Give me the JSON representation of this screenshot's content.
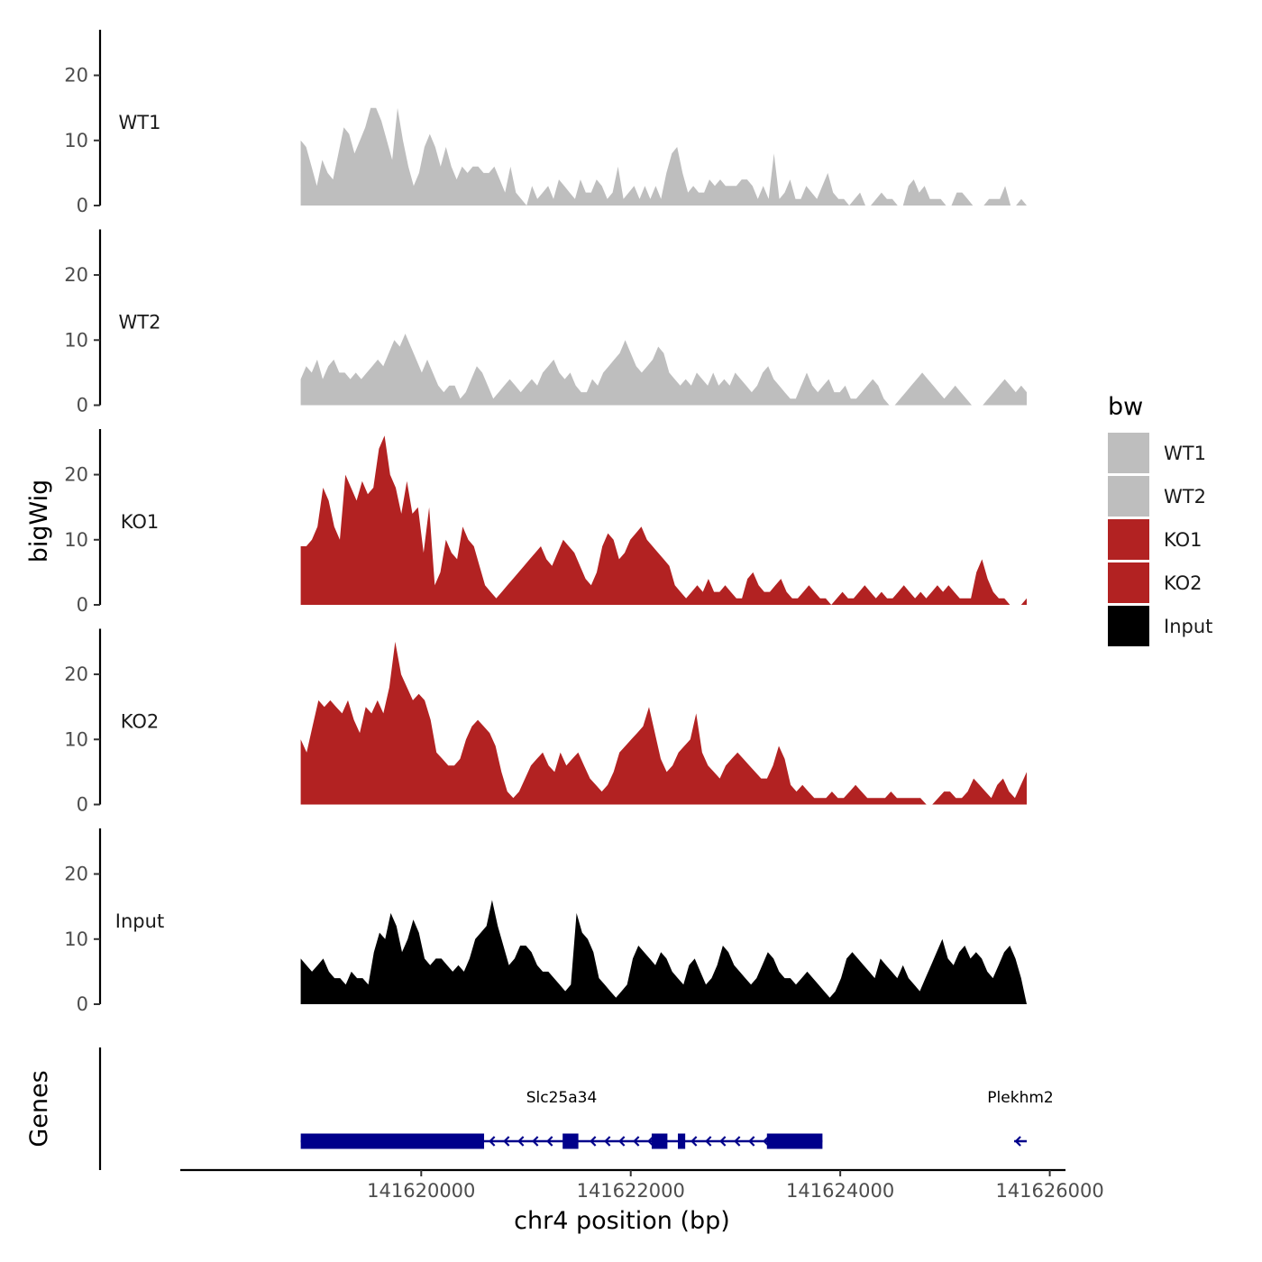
{
  "chart_data": {
    "type": "area",
    "title": "",
    "ylabel": "bigWig",
    "xlabel": "chr4 position (bp)",
    "ylim": [
      0,
      27
    ],
    "yticks": [
      0,
      10,
      20
    ],
    "xlim": [
      141617700,
      141626150
    ],
    "xticks": [
      141620000,
      141622000,
      141624000,
      141626000
    ],
    "x_start": 141618850,
    "x_end": 141625780,
    "grid": false,
    "legend": {
      "title": "bw",
      "position": "right",
      "entries": [
        {
          "name": "WT1",
          "color": "#bebebe"
        },
        {
          "name": "WT2",
          "color": "#bebebe"
        },
        {
          "name": "KO1",
          "color": "#b22222"
        },
        {
          "name": "KO2",
          "color": "#b22222"
        },
        {
          "name": "Input",
          "color": "#000000"
        }
      ]
    },
    "series": [
      {
        "name": "WT1",
        "color": "#bebebe",
        "values": [
          10,
          9,
          6,
          3,
          7,
          5,
          4,
          8,
          12,
          11,
          8,
          10,
          12,
          15,
          15,
          13,
          10,
          7,
          15,
          10,
          6,
          3,
          5,
          9,
          11,
          9,
          6,
          9,
          6,
          4,
          6,
          5,
          6,
          6,
          5,
          5,
          6,
          4,
          2,
          6,
          2,
          1,
          0,
          3,
          1,
          2,
          3,
          1,
          4,
          3,
          2,
          1,
          4,
          2,
          2,
          4,
          3,
          1,
          2,
          6,
          1,
          2,
          3,
          1,
          3,
          1,
          3,
          1,
          5,
          8,
          9,
          5,
          2,
          3,
          2,
          2,
          4,
          3,
          4,
          3,
          3,
          3,
          4,
          4,
          3,
          1,
          3,
          1,
          8,
          1,
          2,
          4,
          1,
          1,
          3,
          2,
          1,
          3,
          5,
          2,
          1,
          1,
          0,
          1,
          2,
          0,
          0,
          1,
          2,
          1,
          1,
          0,
          0,
          3,
          4,
          2,
          3,
          1,
          1,
          1,
          0,
          0,
          2,
          2,
          1,
          0,
          0,
          0,
          1,
          1,
          1,
          3,
          0,
          0,
          1,
          0
        ]
      },
      {
        "name": "WT2",
        "color": "#bebebe",
        "values": [
          4,
          6,
          5,
          7,
          4,
          6,
          7,
          5,
          5,
          4,
          5,
          4,
          5,
          6,
          7,
          6,
          8,
          10,
          9,
          11,
          9,
          7,
          5,
          7,
          5,
          3,
          2,
          3,
          3,
          1,
          2,
          4,
          6,
          5,
          3,
          1,
          2,
          3,
          4,
          3,
          2,
          3,
          4,
          3,
          5,
          6,
          7,
          5,
          4,
          5,
          3,
          2,
          2,
          4,
          3,
          5,
          6,
          7,
          8,
          10,
          8,
          6,
          5,
          6,
          7,
          9,
          8,
          5,
          4,
          3,
          4,
          3,
          5,
          4,
          3,
          5,
          3,
          4,
          3,
          5,
          4,
          3,
          2,
          3,
          5,
          6,
          4,
          3,
          2,
          1,
          1,
          3,
          5,
          3,
          2,
          3,
          4,
          2,
          2,
          3,
          1,
          1,
          2,
          3,
          4,
          3,
          1,
          0,
          0,
          1,
          2,
          3,
          4,
          5,
          4,
          3,
          2,
          1,
          2,
          3,
          2,
          1,
          0,
          0,
          0,
          1,
          2,
          3,
          4,
          3,
          2,
          3,
          2
        ]
      },
      {
        "name": "KO1",
        "color": "#b22222",
        "values": [
          9,
          9,
          10,
          12,
          18,
          16,
          12,
          10,
          20,
          18,
          16,
          19,
          17,
          18,
          24,
          26,
          20,
          18,
          14,
          19,
          14,
          15,
          8,
          15,
          3,
          5,
          10,
          8,
          7,
          12,
          10,
          9,
          6,
          3,
          2,
          1,
          2,
          3,
          4,
          5,
          6,
          7,
          8,
          9,
          7,
          6,
          8,
          10,
          9,
          8,
          6,
          4,
          3,
          5,
          9,
          11,
          10,
          7,
          8,
          10,
          11,
          12,
          10,
          9,
          8,
          7,
          6,
          3,
          2,
          1,
          2,
          3,
          2,
          4,
          2,
          2,
          3,
          2,
          1,
          1,
          4,
          5,
          3,
          2,
          2,
          3,
          4,
          2,
          1,
          1,
          2,
          3,
          2,
          1,
          1,
          0,
          1,
          2,
          1,
          1,
          2,
          3,
          2,
          1,
          2,
          1,
          1,
          2,
          3,
          2,
          1,
          2,
          1,
          2,
          3,
          2,
          3,
          2,
          1,
          1,
          1,
          5,
          7,
          4,
          2,
          1,
          1,
          0,
          0,
          0,
          1
        ]
      },
      {
        "name": "KO2",
        "color": "#b22222",
        "values": [
          10,
          8,
          12,
          16,
          15,
          16,
          15,
          14,
          16,
          13,
          11,
          15,
          14,
          16,
          14,
          18,
          25,
          20,
          18,
          16,
          17,
          16,
          13,
          8,
          7,
          6,
          6,
          7,
          10,
          12,
          13,
          12,
          11,
          9,
          5,
          2,
          1,
          2,
          4,
          6,
          7,
          8,
          6,
          5,
          8,
          6,
          7,
          8,
          6,
          4,
          3,
          2,
          3,
          5,
          8,
          9,
          10,
          11,
          12,
          15,
          11,
          7,
          5,
          6,
          8,
          9,
          10,
          14,
          8,
          6,
          5,
          4,
          6,
          7,
          8,
          7,
          6,
          5,
          4,
          4,
          6,
          9,
          7,
          3,
          2,
          3,
          2,
          1,
          1,
          1,
          2,
          1,
          1,
          2,
          3,
          2,
          1,
          1,
          1,
          1,
          2,
          1,
          1,
          1,
          1,
          1,
          0,
          0,
          1,
          2,
          2,
          1,
          1,
          2,
          4,
          3,
          2,
          1,
          3,
          4,
          2,
          1,
          3,
          5
        ]
      },
      {
        "name": "Input",
        "color": "#000000",
        "values": [
          7,
          6,
          5,
          6,
          7,
          5,
          4,
          4,
          3,
          5,
          4,
          4,
          3,
          8,
          11,
          10,
          14,
          12,
          8,
          10,
          13,
          11,
          7,
          6,
          7,
          7,
          6,
          5,
          6,
          5,
          7,
          10,
          11,
          12,
          16,
          12,
          9,
          6,
          7,
          9,
          9,
          8,
          6,
          5,
          5,
          4,
          3,
          2,
          3,
          14,
          11,
          10,
          8,
          4,
          3,
          2,
          1,
          2,
          3,
          7,
          9,
          8,
          7,
          6,
          8,
          7,
          5,
          4,
          3,
          6,
          7,
          5,
          3,
          4,
          6,
          9,
          8,
          6,
          5,
          4,
          3,
          4,
          6,
          8,
          7,
          5,
          4,
          4,
          3,
          4,
          5,
          4,
          3,
          2,
          1,
          2,
          4,
          7,
          8,
          7,
          6,
          5,
          4,
          7,
          6,
          5,
          4,
          6,
          4,
          3,
          2,
          4,
          6,
          8,
          10,
          7,
          6,
          8,
          9,
          7,
          8,
          7,
          5,
          4,
          6,
          8,
          9,
          7,
          4,
          0
        ]
      }
    ],
    "genes": [
      {
        "name": "Slc25a34",
        "strand": "-",
        "start": 141618850,
        "end": 141623830,
        "exons": [
          [
            141618850,
            141620600
          ],
          [
            141621350,
            141621500
          ],
          [
            141622200,
            141622350
          ],
          [
            141622450,
            141622520
          ],
          [
            141623300,
            141623830
          ]
        ]
      },
      {
        "name": "Plekhm2",
        "strand": "-",
        "start": 141625660,
        "end": 141625780,
        "exons": []
      }
    ],
    "genes_track_label": "Genes"
  }
}
